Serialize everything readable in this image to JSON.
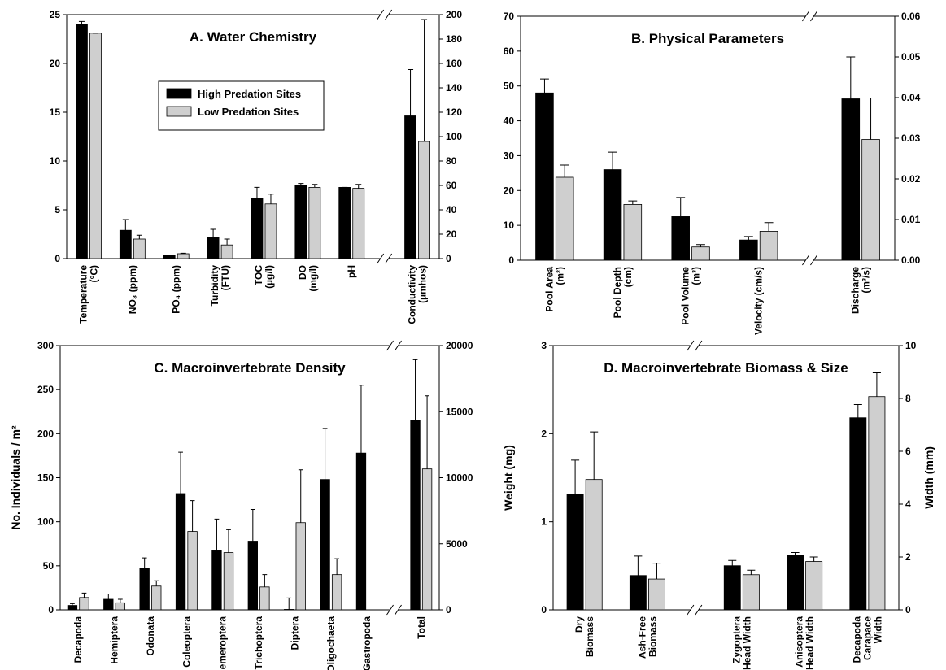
{
  "chart_data": [
    {
      "type": "bar",
      "title": "A.  Water Chemistry",
      "categories": [
        [
          "Temperature",
          "(°C)"
        ],
        [
          "NO₃ (ppm)"
        ],
        [
          "PO₄ (ppm)"
        ],
        [
          "Turbidity",
          "(FTU)"
        ],
        [
          "TOC",
          "(µg/l)"
        ],
        [
          "DO",
          "(mg/l)"
        ],
        [
          "pH"
        ],
        [
          "Conductivity",
          "(µmhos)"
        ]
      ],
      "category_axis": [
        "y",
        "y",
        "y",
        "y",
        "y",
        "y",
        "y",
        "y2"
      ],
      "series": [
        {
          "name": "High Predation Sites",
          "color": "#000000",
          "values": [
            24.0,
            2.9,
            0.35,
            2.2,
            6.2,
            7.5,
            7.3,
            117
          ],
          "errors": [
            0.3,
            1.1,
            0,
            0.8,
            1.1,
            0.2,
            0,
            38
          ]
        },
        {
          "name": "Low Predation Sites",
          "color": "#cfcfcf",
          "values": [
            23.1,
            2.0,
            0.5,
            1.4,
            5.6,
            7.3,
            7.2,
            96
          ],
          "errors": [
            0,
            0.4,
            0.05,
            0.6,
            1.0,
            0.3,
            0.4,
            100
          ]
        }
      ],
      "ylim": [
        0,
        25
      ],
      "yticks": [
        0,
        5,
        10,
        15,
        20,
        25
      ],
      "y2lim": [
        0,
        200
      ],
      "y2ticks": [
        0,
        20,
        40,
        60,
        80,
        100,
        120,
        140,
        160,
        180,
        200
      ],
      "legend": true
    },
    {
      "type": "bar",
      "title": "B.  Physical Parameters",
      "categories": [
        [
          "Pool Area",
          "(m²)"
        ],
        [
          "Pool Depth",
          "(cm)"
        ],
        [
          "Pool Volume",
          "(m³)"
        ],
        [
          "Velocity (cm/s)"
        ],
        [
          "Discharge",
          "(m³/s)"
        ]
      ],
      "category_axis": [
        "y",
        "y",
        "y",
        "y",
        "y2"
      ],
      "series": [
        {
          "color": "#000000",
          "values": [
            48,
            26,
            12.5,
            5.8,
            0.0397
          ],
          "errors": [
            4,
            5,
            5.5,
            1,
            0.0103
          ]
        },
        {
          "color": "#cfcfcf",
          "values": [
            23.8,
            16,
            3.8,
            8.3,
            0.0297
          ],
          "errors": [
            3.5,
            1,
            0.7,
            2.5,
            0.0102
          ]
        }
      ],
      "ylim": [
        0,
        70
      ],
      "yticks": [
        0,
        10,
        20,
        30,
        40,
        50,
        60,
        70
      ],
      "y2lim": [
        0,
        0.06
      ],
      "y2ticks": [
        {
          "value": 0,
          "label": "0.00"
        },
        0.01,
        0.02,
        0.03,
        0.04,
        0.05,
        0.06
      ],
      "legend": false
    },
    {
      "type": "bar",
      "title": "C.  Macroinvertebrate Density",
      "ylabel": "No. Individuals / m²",
      "categories": [
        [
          "Decapoda"
        ],
        [
          "Hemiptera"
        ],
        [
          "Odonata"
        ],
        [
          "Coleoptera"
        ],
        [
          "Ephemeroptera"
        ],
        [
          "Trichoptera"
        ],
        [
          "Diptera"
        ],
        [
          "Oligochaeta"
        ],
        [
          "Gastropoda"
        ],
        [
          "Total"
        ]
      ],
      "category_axis": [
        "y",
        "y",
        "y",
        "y",
        "y",
        "y",
        "y",
        "y",
        "y",
        "y2"
      ],
      "series": [
        {
          "color": "#000000",
          "values": [
            5,
            12,
            47,
            132,
            67,
            78,
            0.5,
            148,
            178,
            14333
          ],
          "errors": [
            2,
            6,
            12,
            47,
            36,
            36,
            13,
            58,
            77,
            4600
          ]
        },
        {
          "color": "#cfcfcf",
          "values": [
            14,
            8,
            27,
            89,
            65,
            26,
            99,
            40,
            null,
            10667
          ],
          "errors": [
            5,
            4,
            6,
            35,
            26,
            14,
            60,
            18,
            null,
            5533
          ]
        }
      ],
      "ylim": [
        0,
        300
      ],
      "yticks": [
        0,
        50,
        100,
        150,
        200,
        250,
        300
      ],
      "y2lim": [
        0,
        20000
      ],
      "y2ticks": [
        0,
        5000,
        10000,
        15000,
        20000
      ],
      "legend": false
    },
    {
      "type": "bar",
      "title": "D.  Macroinvertebrate Biomass & Size",
      "ylabel": "Weight (mg)",
      "y2label": "Width (mm)",
      "categories": [
        [
          "Dry",
          "Biomass"
        ],
        [
          "Ash-Free",
          "Biomass"
        ],
        [
          "Zygoptera",
          "Head Width"
        ],
        [
          "Anisoptera",
          "Head Width"
        ],
        [
          "Decapoda",
          "Carapace",
          "Width"
        ]
      ],
      "category_axis": [
        "y",
        "y",
        "y2",
        "y2",
        "y2"
      ],
      "series": [
        {
          "color": "#000000",
          "values": [
            1.31,
            0.39,
            1.67,
            2.07,
            7.27
          ],
          "errors": [
            0.39,
            0.22,
            0.2,
            0.1,
            0.5
          ]
        },
        {
          "color": "#cfcfcf",
          "values": [
            1.48,
            0.35,
            1.33,
            1.83,
            8.07
          ],
          "errors": [
            0.54,
            0.18,
            0.17,
            0.17,
            0.9
          ]
        }
      ],
      "ylim": [
        0,
        3
      ],
      "yticks": [
        0,
        1,
        2,
        3
      ],
      "y2lim": [
        0,
        10
      ],
      "y2ticks": [
        0,
        2,
        4,
        6,
        8,
        10
      ],
      "legend": false
    }
  ]
}
